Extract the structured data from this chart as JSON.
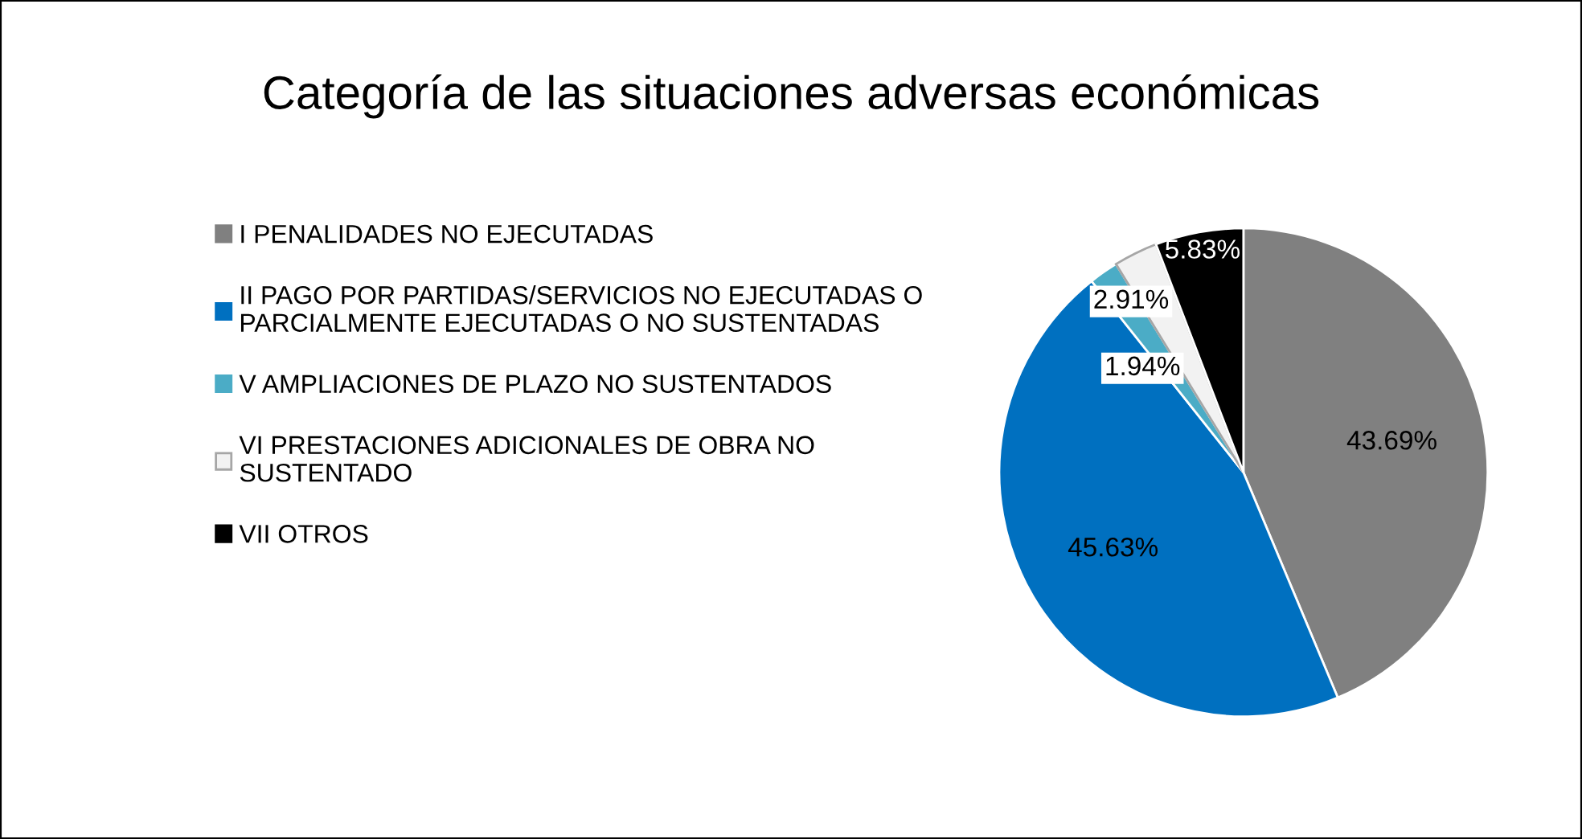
{
  "chart_data": {
    "type": "pie",
    "title": "Categoría de las situaciones adversas económicas",
    "categories": [
      "I PENALIDADES NO EJECUTADAS",
      "II PAGO POR PARTIDAS/SERVICIOS NO EJECUTADAS O\nPARCIALMENTE EJECUTADAS O NO SUSTENTADAS",
      "V AMPLIACIONES DE PLAZO NO SUSTENTADOS",
      "VI PRESTACIONES ADICIONALES DE OBRA NO\nSUSTENTADO",
      "VII OTROS"
    ],
    "values": [
      43.69,
      45.63,
      1.94,
      2.91,
      5.83
    ],
    "value_labels": [
      "43.69%",
      "45.63%",
      "1.94%",
      "2.91%",
      "5.83%"
    ],
    "colors": [
      "#808080",
      "#0070c0",
      "#4bacc6",
      "#f2f2f2",
      "#000000"
    ],
    "legend": "left"
  }
}
